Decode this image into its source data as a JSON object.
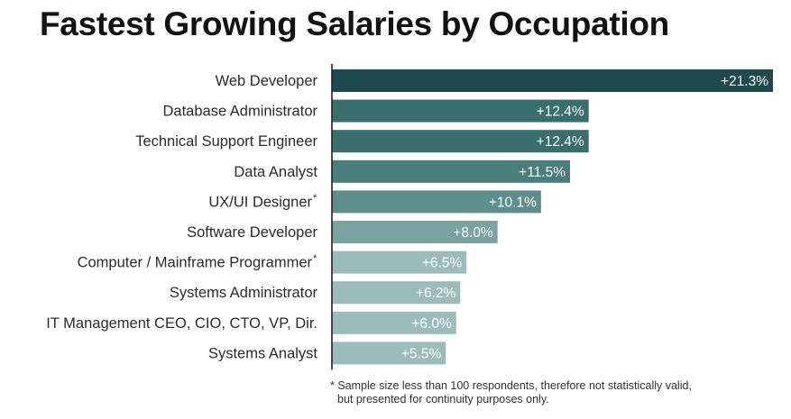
{
  "chart_data": {
    "type": "bar",
    "orientation": "horizontal",
    "title": "Fastest Growing Salaries by Occupation",
    "categories": [
      "Web Developer",
      "Database Administrator",
      "Technical Support Engineer",
      "Data Analyst",
      "UX/UI Designer",
      "Software Developer",
      "Computer / Mainframe Programmer",
      "Systems Administrator",
      "IT Management CEO, CIO, CTO, VP, Dir.",
      "Systems Analyst"
    ],
    "asterisk": [
      false,
      false,
      false,
      false,
      true,
      false,
      true,
      false,
      false,
      false
    ],
    "values": [
      21.3,
      12.4,
      12.4,
      11.5,
      10.1,
      8.0,
      6.5,
      6.2,
      6.0,
      5.5
    ],
    "value_labels": [
      "+21.3%",
      "+12.4%",
      "+12.4%",
      "+11.5%",
      "+10.1%",
      "+8.0%",
      "+6.5%",
      "+6.2%",
      "+6.0%",
      "+5.5%"
    ],
    "colors": [
      "#1e4a4f",
      "#386e6d",
      "#386e6d",
      "#4a7e7d",
      "#5e8e8c",
      "#7aa4a2",
      "#9bbcba",
      "#9bbcba",
      "#9bbcba",
      "#9bbcba"
    ],
    "xlim": [
      0,
      21.3
    ],
    "unit": "%",
    "grid": false,
    "legend": "none",
    "asterisk_mark": "*",
    "footnote": [
      "* Sample size less than 100 respondents, therefore not statistically valid,",
      "but presented for continuity purposes only."
    ]
  },
  "colors": {
    "axis": "#222222",
    "label_text": "#2b2b2b",
    "value_text": "#ffffff"
  }
}
